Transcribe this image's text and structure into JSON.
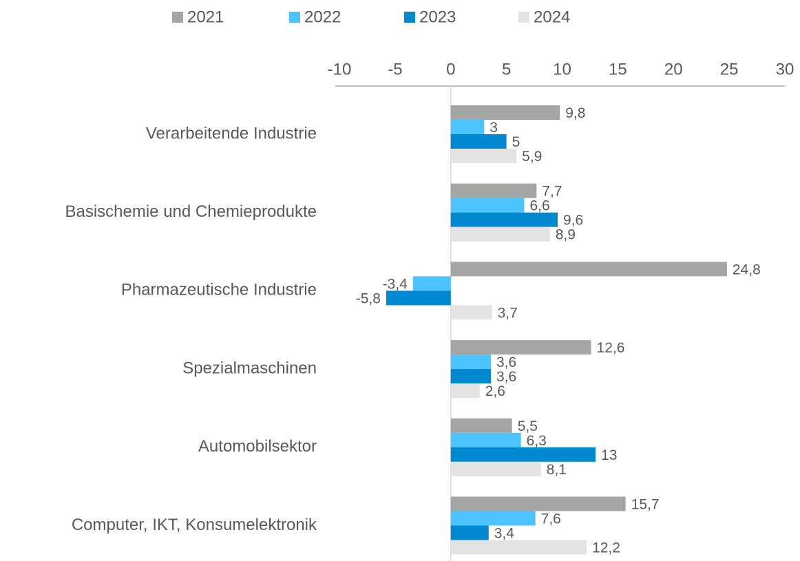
{
  "chart_data": {
    "type": "hbar",
    "categories": [
      "Verarbeitende Industrie",
      "Basischemie und Chemieprodukte",
      "Pharmazeutische Industrie",
      "Spezialmaschinen",
      "Automobilsektor",
      "Computer, IKT, Konsumelektronik"
    ],
    "series": [
      {
        "name": "2021",
        "color": "#a5a5a5",
        "values": [
          9.8,
          7.7,
          24.8,
          12.6,
          5.5,
          15.7
        ],
        "value_labels": [
          "9,8",
          "7,7",
          "24,8",
          "12,6",
          "5,5",
          "15,7"
        ]
      },
      {
        "name": "2022",
        "color": "#4dc3ff",
        "values": [
          3,
          6.6,
          -3.4,
          3.6,
          6.3,
          7.6
        ],
        "value_labels": [
          "3",
          "6,6",
          "-3,4",
          "3,6",
          "6,3",
          "7,6"
        ]
      },
      {
        "name": "2023",
        "color": "#0088d1",
        "values": [
          5,
          9.6,
          -5.8,
          3.6,
          13,
          3.4
        ],
        "value_labels": [
          "5",
          "9,6",
          "-5,8",
          "3,6",
          "13",
          "3,4"
        ]
      },
      {
        "name": "2024",
        "color": "#e3e3e3",
        "values": [
          5.9,
          8.9,
          3.7,
          2.6,
          8.1,
          12.2
        ],
        "value_labels": [
          "5,9",
          "8,9",
          "3,7",
          "2,6",
          "8,1",
          "12,2"
        ]
      }
    ],
    "xlim": [
      -10,
      30
    ],
    "xticks": [
      -10,
      -5,
      0,
      5,
      10,
      15,
      20,
      25,
      30
    ],
    "legend": "top"
  }
}
